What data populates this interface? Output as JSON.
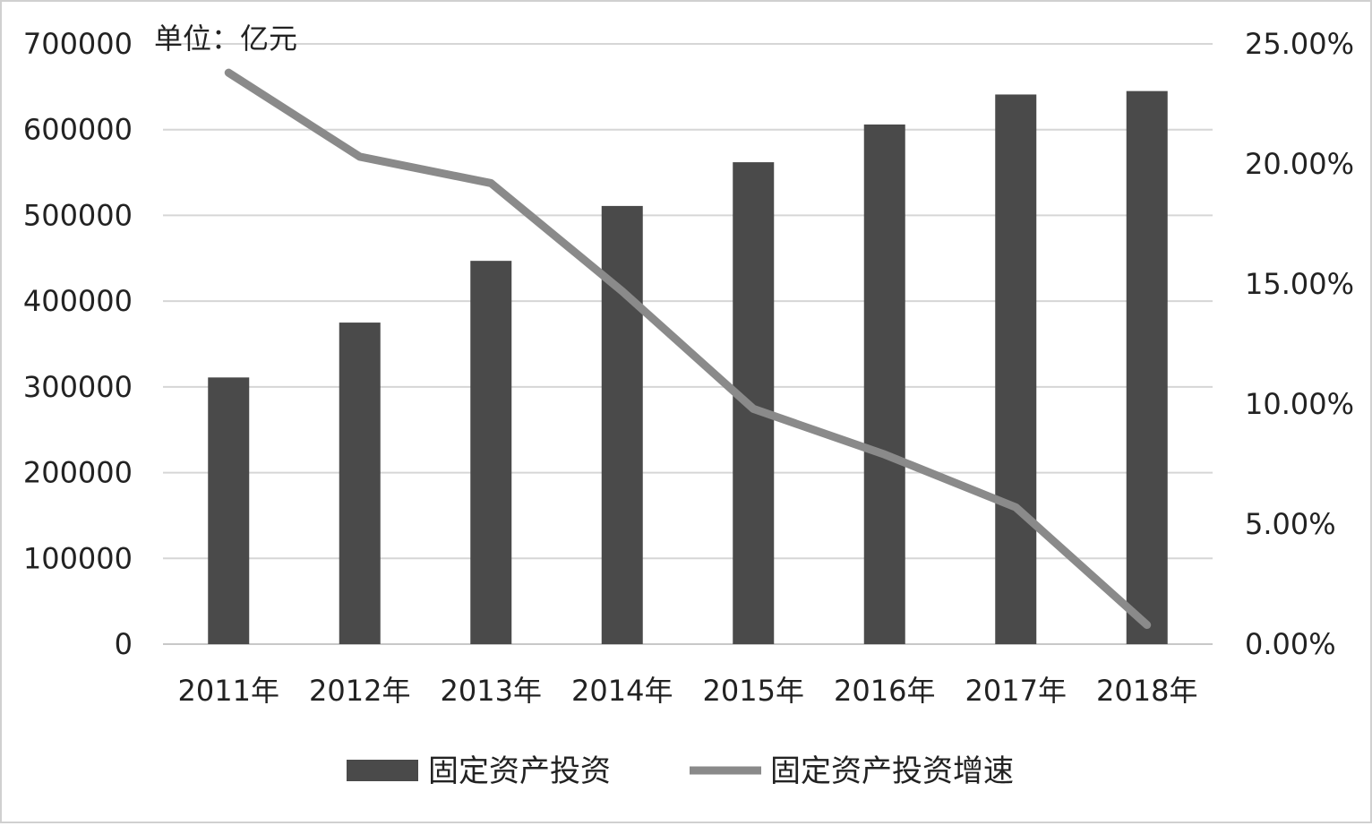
{
  "chart_data": {
    "type": "bar",
    "unit_label": "单位：亿元",
    "categories": [
      "2011年",
      "2012年",
      "2013年",
      "2014年",
      "2015年",
      "2016年",
      "2017年",
      "2018年"
    ],
    "series": [
      {
        "name": "固定资产投资",
        "type": "bar",
        "axis": "left",
        "color": "#4a4a4a",
        "values": [
          311000,
          375000,
          447000,
          511000,
          562000,
          606000,
          641000,
          645000
        ]
      },
      {
        "name": "固定资产投资增速",
        "type": "line",
        "axis": "right",
        "color": "#8a8a8a",
        "values": [
          0.238,
          0.203,
          0.192,
          0.147,
          0.098,
          0.079,
          0.057,
          0.008
        ]
      }
    ],
    "y_left": {
      "ylim": [
        0,
        700000
      ],
      "ticks": [
        0,
        100000,
        200000,
        300000,
        400000,
        500000,
        600000,
        700000
      ],
      "tick_labels": [
        "0",
        "100000",
        "200000",
        "300000",
        "400000",
        "500000",
        "600000",
        "700000"
      ]
    },
    "y_right": {
      "ylim": [
        0,
        0.25
      ],
      "ticks": [
        0,
        0.05,
        0.1,
        0.15,
        0.2,
        0.25
      ],
      "tick_labels": [
        "0.00%",
        "5.00%",
        "10.00%",
        "15.00%",
        "20.00%",
        "25.00%"
      ]
    },
    "grid": true,
    "legend": "bottom-center"
  }
}
